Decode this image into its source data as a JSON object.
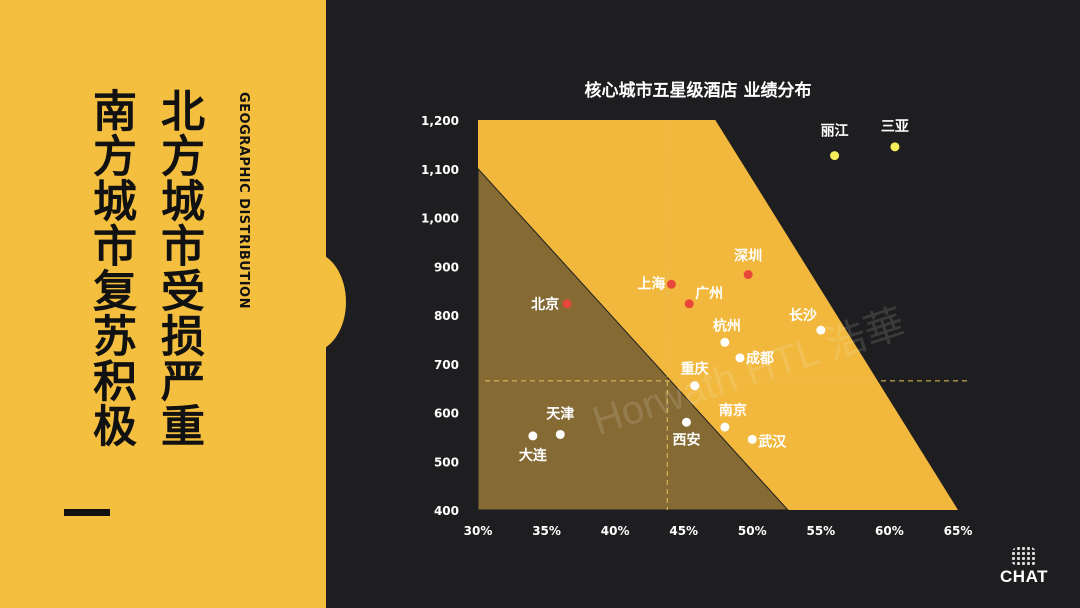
{
  "left": {
    "title_north": "北方城市受损严重",
    "title_south": "南方城市复苏积极",
    "subtitle_en": "GEOGRAPHIC DISTRIBUTION"
  },
  "watermark": "Horwath HTL 浩華",
  "logo": {
    "text": "CHAT"
  },
  "colors": {
    "accent": "#f4bf3e",
    "background": "#1e1e20",
    "north_city": "#e8473a",
    "south_city": "#ffffff",
    "resort_city": "#f5ee5a"
  },
  "chart_data": {
    "type": "scatter",
    "title": "核心城市五星级酒店 业绩分布",
    "xlabel": "",
    "ylabel": "",
    "xlim": [
      30,
      65
    ],
    "ylim": [
      400,
      1200
    ],
    "x_ticks": [
      "30%",
      "35%",
      "40%",
      "45%",
      "50%",
      "55%",
      "60%",
      "65%"
    ],
    "y_ticks": [
      "400",
      "500",
      "600",
      "700",
      "800",
      "900",
      "1,000",
      "1,100",
      "1,200"
    ],
    "x_ref": 43.8,
    "y_ref": 665,
    "points": [
      {
        "name": "丽江",
        "x": 56.0,
        "y": 1127,
        "group": "resort"
      },
      {
        "name": "三亚",
        "x": 60.4,
        "y": 1145,
        "group": "resort"
      },
      {
        "name": "深圳",
        "x": 49.7,
        "y": 883,
        "group": "highlight"
      },
      {
        "name": "上海",
        "x": 44.1,
        "y": 863,
        "group": "highlight"
      },
      {
        "name": "广州",
        "x": 45.4,
        "y": 823,
        "group": "highlight"
      },
      {
        "name": "北京",
        "x": 36.5,
        "y": 823,
        "group": "highlight"
      },
      {
        "name": "长沙",
        "x": 55.0,
        "y": 769,
        "group": "normal"
      },
      {
        "name": "杭州",
        "x": 48.0,
        "y": 744,
        "group": "normal"
      },
      {
        "name": "成都",
        "x": 49.1,
        "y": 712,
        "group": "normal"
      },
      {
        "name": "重庆",
        "x": 45.8,
        "y": 655,
        "group": "normal"
      },
      {
        "name": "南京",
        "x": 48.0,
        "y": 570,
        "group": "normal"
      },
      {
        "name": "西安",
        "x": 45.2,
        "y": 580,
        "group": "normal"
      },
      {
        "name": "武汉",
        "x": 50.0,
        "y": 545,
        "group": "normal"
      },
      {
        "name": "天津",
        "x": 36.0,
        "y": 555,
        "group": "normal"
      },
      {
        "name": "大连",
        "x": 34.0,
        "y": 552,
        "group": "normal"
      }
    ],
    "regions": [
      {
        "name": "upper-band",
        "polygon": [
          [
            30,
            1200
          ],
          [
            47.3,
            1200
          ],
          [
            65,
            400
          ],
          [
            30,
            400
          ]
        ]
      },
      {
        "name": "lower-triangle",
        "polygon": [
          [
            30,
            1100
          ],
          [
            30,
            400
          ],
          [
            52.6,
            400
          ]
        ]
      }
    ]
  }
}
